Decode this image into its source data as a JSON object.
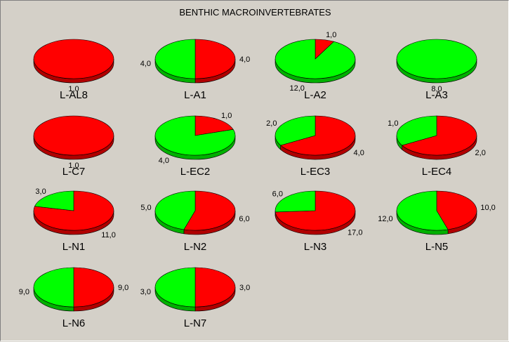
{
  "title": "BENTHIC MACROINVERTEBRATES",
  "colors": {
    "red_series": "#ff0000",
    "green_series": "#00ff00",
    "background": "#d4d0c8"
  },
  "chart_data": {
    "type": "pie",
    "title": "BENTHIC MACROINVERTEBRATES",
    "value_labels_note": "values printed with comma decimal separator",
    "pies": [
      {
        "label": "L-AL8",
        "red": 1,
        "green": 0,
        "red_text": "1,0",
        "green_text": ""
      },
      {
        "label": "L-A1",
        "red": 4,
        "green": 4,
        "red_text": "4,0",
        "green_text": "4,0"
      },
      {
        "label": "L-A2",
        "red": 1,
        "green": 12,
        "red_text": "1,0",
        "green_text": "12,0"
      },
      {
        "label": "L-A3",
        "red": 0,
        "green": 8,
        "red_text": "",
        "green_text": "8,0"
      },
      {
        "label": "L-C7",
        "red": 1,
        "green": 0,
        "red_text": "1,0",
        "green_text": ""
      },
      {
        "label": "L-EC2",
        "red": 1,
        "green": 4,
        "red_text": "1,0",
        "green_text": "4,0"
      },
      {
        "label": "L-EC3",
        "red": 4,
        "green": 2,
        "red_text": "4,0",
        "green_text": "2,0"
      },
      {
        "label": "L-EC4",
        "red": 2,
        "green": 1,
        "red_text": "2,0",
        "green_text": "1,0"
      },
      {
        "label": "L-N1",
        "red": 11,
        "green": 3,
        "red_text": "11,0",
        "green_text": "3,0"
      },
      {
        "label": "L-N2",
        "red": 6,
        "green": 5,
        "red_text": "6,0",
        "green_text": "5,0"
      },
      {
        "label": "L-N3",
        "red": 17,
        "green": 6,
        "red_text": "17,0",
        "green_text": "6,0"
      },
      {
        "label": "L-N5",
        "red": 10,
        "green": 12,
        "red_text": "10,0",
        "green_text": "12,0"
      },
      {
        "label": "L-N6",
        "red": 9,
        "green": 9,
        "red_text": "9,0",
        "green_text": "9,0"
      },
      {
        "label": "L-N7",
        "red": 3,
        "green": 3,
        "red_text": "3,0",
        "green_text": "3,0"
      }
    ]
  }
}
